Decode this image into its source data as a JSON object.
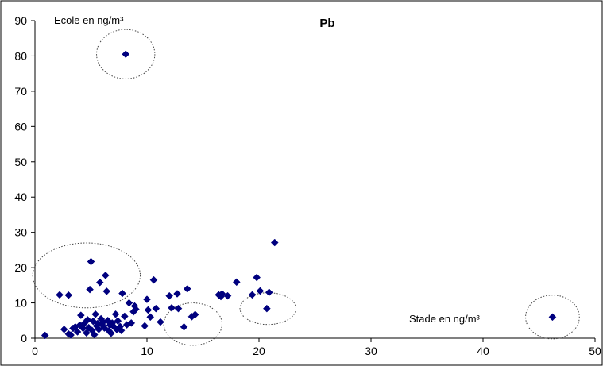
{
  "chart_data": {
    "type": "scatter",
    "title": "Pb",
    "ylabel": "Ecole en ng/m³",
    "xlabel": "Stade en ng/m³",
    "xlim": [
      0,
      50
    ],
    "ylim": [
      0,
      90
    ],
    "x_ticks": [
      "0",
      "10",
      "20",
      "30",
      "40",
      "50"
    ],
    "y_ticks": [
      "0",
      "10",
      "20",
      "30",
      "40",
      "50",
      "60",
      "70",
      "80",
      "90"
    ],
    "grid": false,
    "marker_color": "#00007F",
    "circle_color": "#444444",
    "points": [
      [
        0.9,
        0.8
      ],
      [
        2.2,
        12.3
      ],
      [
        3.0,
        12.2
      ],
      [
        2.6,
        2.5
      ],
      [
        3.0,
        1.2
      ],
      [
        3.2,
        0.9
      ],
      [
        3.4,
        2.8
      ],
      [
        3.6,
        3.2
      ],
      [
        3.8,
        1.8
      ],
      [
        4.0,
        3.7
      ],
      [
        4.1,
        6.5
      ],
      [
        4.3,
        2.8
      ],
      [
        4.4,
        4.2
      ],
      [
        4.6,
        1.5
      ],
      [
        4.7,
        5.2
      ],
      [
        4.8,
        3.0
      ],
      [
        4.9,
        13.8
      ],
      [
        5.0,
        21.7
      ],
      [
        5.1,
        2.2
      ],
      [
        5.2,
        4.8
      ],
      [
        5.3,
        1.0
      ],
      [
        5.4,
        6.8
      ],
      [
        5.5,
        3.5
      ],
      [
        5.6,
        4.2
      ],
      [
        5.7,
        2.5
      ],
      [
        5.8,
        15.8
      ],
      [
        5.9,
        5.5
      ],
      [
        6.0,
        3.8
      ],
      [
        6.1,
        4.6
      ],
      [
        6.2,
        2.9
      ],
      [
        6.3,
        17.8
      ],
      [
        6.4,
        13.3
      ],
      [
        6.5,
        5.0
      ],
      [
        6.6,
        2.1
      ],
      [
        6.7,
        3.7
      ],
      [
        6.8,
        1.4
      ],
      [
        6.9,
        4.3
      ],
      [
        7.1,
        3.1
      ],
      [
        7.2,
        6.8
      ],
      [
        7.3,
        2.5
      ],
      [
        7.4,
        4.9
      ],
      [
        7.6,
        3.3
      ],
      [
        7.7,
        2.2
      ],
      [
        7.8,
        12.7
      ],
      [
        8.0,
        6.2
      ],
      [
        8.1,
        80.5
      ],
      [
        8.2,
        3.8
      ],
      [
        8.4,
        10.0
      ],
      [
        8.6,
        4.3
      ],
      [
        8.8,
        7.5
      ],
      [
        8.9,
        9.1
      ],
      [
        9.0,
        8.2
      ],
      [
        9.8,
        3.5
      ],
      [
        10.0,
        11.0
      ],
      [
        10.1,
        8.0
      ],
      [
        10.3,
        6.0
      ],
      [
        10.6,
        16.5
      ],
      [
        10.8,
        8.4
      ],
      [
        11.2,
        4.6
      ],
      [
        12.0,
        12.0
      ],
      [
        12.2,
        8.6
      ],
      [
        12.7,
        12.6
      ],
      [
        12.8,
        8.4
      ],
      [
        13.3,
        3.2
      ],
      [
        13.6,
        14.0
      ],
      [
        14.0,
        6.1
      ],
      [
        14.3,
        6.7
      ],
      [
        16.4,
        12.3
      ],
      [
        16.6,
        11.8
      ],
      [
        16.7,
        12.6
      ],
      [
        17.2,
        12.0
      ],
      [
        18.0,
        15.9
      ],
      [
        19.4,
        12.3
      ],
      [
        19.8,
        17.2
      ],
      [
        20.1,
        13.4
      ],
      [
        20.7,
        8.4
      ],
      [
        20.9,
        13.0
      ],
      [
        21.4,
        27.1
      ],
      [
        46.2,
        6.0
      ]
    ],
    "highlight_circles": [
      {
        "cx": 8.1,
        "cy": 80.5,
        "rx": 2.6,
        "ry": 7.0
      },
      {
        "cx": 4.6,
        "cy": 17.8,
        "rx": 4.8,
        "ry": 9.2
      },
      {
        "cx": 14.1,
        "cy": 4.0,
        "rx": 2.6,
        "ry": 6.0
      },
      {
        "cx": 20.8,
        "cy": 8.4,
        "rx": 2.5,
        "ry": 4.5
      },
      {
        "cx": 46.2,
        "cy": 6.0,
        "rx": 2.4,
        "ry": 6.2
      }
    ]
  }
}
